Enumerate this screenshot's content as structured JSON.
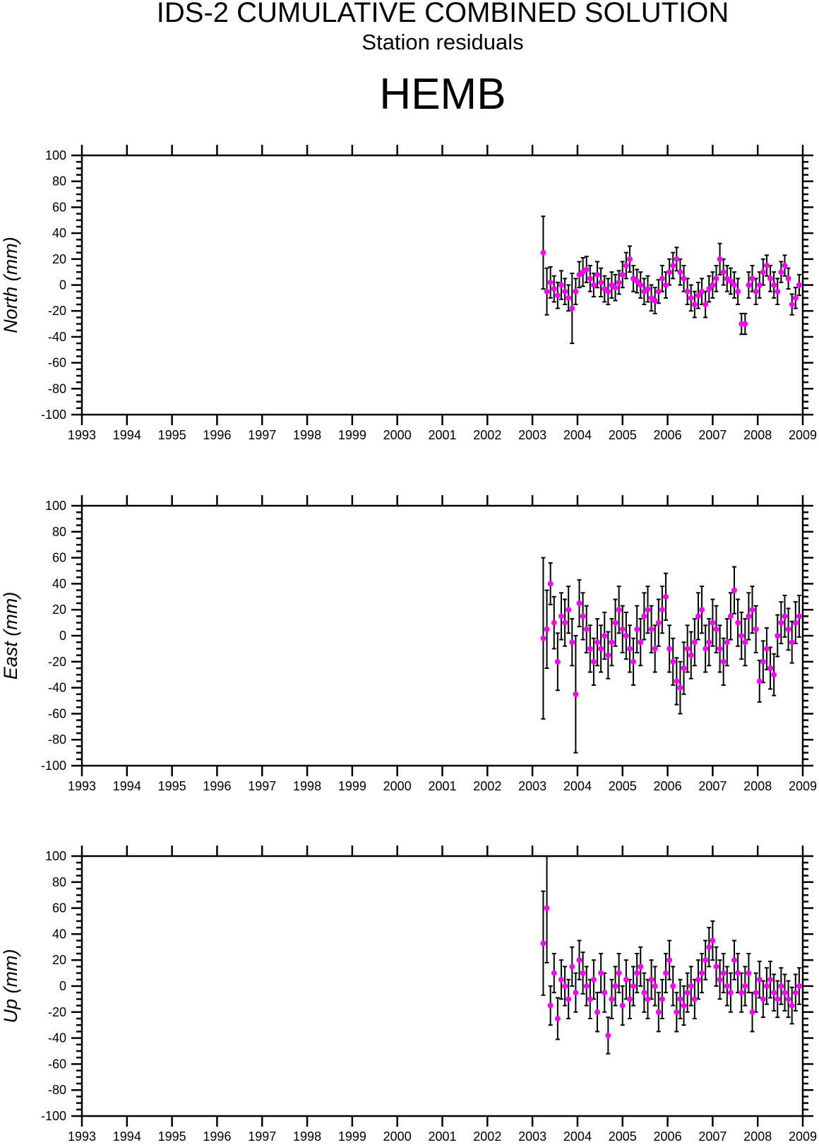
{
  "header": {
    "title": "IDS-2 CUMULATIVE COMBINED SOLUTION",
    "subtitle": "Station residuals",
    "station": "HEMB"
  },
  "colors": {
    "point": "#ff00ff",
    "errorbar": "#000000",
    "axis": "#000000"
  },
  "chart_data": [
    {
      "type": "scatter",
      "title": "North",
      "ylabel": "North (mm)",
      "xlim": [
        1993,
        2009
      ],
      "ylim": [
        -100,
        100
      ],
      "xticks": [
        "1993",
        "1994",
        "1995",
        "1996",
        "1997",
        "1998",
        "1999",
        "2000",
        "2001",
        "2002",
        "2003",
        "2004",
        "2005",
        "2006",
        "2007",
        "2008",
        "2009"
      ],
      "yticks": [
        "100",
        "80",
        "60",
        "40",
        "20",
        "0",
        "-20",
        "-40",
        "-60",
        "-80",
        "-100"
      ],
      "y": [
        25,
        -5,
        2,
        -3,
        -8,
        0,
        -5,
        -10,
        -18,
        -5,
        8,
        10,
        12,
        5,
        0,
        8,
        2,
        -3,
        -5,
        0,
        -2,
        2,
        8,
        15,
        20,
        5,
        3,
        0,
        -5,
        -3,
        -10,
        -12,
        -5,
        5,
        0,
        10,
        15,
        20,
        10,
        5,
        -5,
        -10,
        -15,
        -8,
        -5,
        -15,
        -3,
        0,
        5,
        20,
        10,
        5,
        3,
        0,
        -5,
        -30,
        -30,
        0,
        5,
        -5,
        0,
        10,
        15,
        5,
        0,
        -5,
        10,
        15,
        5,
        -15,
        -10,
        0
      ],
      "err": [
        28,
        18,
        12,
        10,
        10,
        11,
        10,
        10,
        27,
        10,
        10,
        11,
        10,
        10,
        9,
        10,
        11,
        10,
        10,
        10,
        10,
        9,
        10,
        10,
        10,
        10,
        9,
        10,
        10,
        10,
        10,
        10,
        9,
        10,
        10,
        10,
        10,
        9,
        10,
        10,
        10,
        10,
        10,
        10,
        10,
        10,
        10,
        10,
        10,
        12,
        10,
        10,
        10,
        10,
        10,
        8,
        8,
        10,
        10,
        10,
        10,
        10,
        8,
        10,
        10,
        10,
        8,
        8,
        8,
        8,
        8,
        8
      ]
    },
    {
      "type": "scatter",
      "title": "East",
      "ylabel": "East (mm)",
      "xlim": [
        1993,
        2009
      ],
      "ylim": [
        -100,
        100
      ],
      "xticks": [
        "1993",
        "1994",
        "1995",
        "1996",
        "1997",
        "1998",
        "1999",
        "2000",
        "2001",
        "2002",
        "2003",
        "2004",
        "2005",
        "2006",
        "2007",
        "2008",
        "2009"
      ],
      "yticks": [
        "100",
        "80",
        "60",
        "40",
        "20",
        "0",
        "-20",
        "-40",
        "-60",
        "-80",
        "-100"
      ],
      "y": [
        -2,
        5,
        40,
        10,
        -20,
        15,
        10,
        20,
        -5,
        -45,
        25,
        15,
        5,
        -10,
        -20,
        -5,
        -10,
        0,
        -15,
        -5,
        10,
        20,
        5,
        0,
        -10,
        -20,
        5,
        -5,
        15,
        20,
        5,
        -10,
        10,
        20,
        30,
        -10,
        -20,
        -35,
        -40,
        -25,
        -10,
        -15,
        -5,
        15,
        20,
        -10,
        -5,
        10,
        5,
        -10,
        -20,
        -5,
        15,
        35,
        10,
        0,
        -5,
        15,
        20,
        5,
        -35,
        -20,
        -10,
        -25,
        -30,
        0,
        10,
        15,
        5,
        -5,
        10,
        15
      ],
      "err": [
        62,
        30,
        16,
        20,
        22,
        18,
        18,
        18,
        18,
        45,
        18,
        18,
        18,
        18,
        18,
        18,
        18,
        18,
        18,
        18,
        18,
        18,
        18,
        18,
        18,
        18,
        18,
        18,
        18,
        18,
        18,
        18,
        18,
        18,
        18,
        18,
        18,
        18,
        20,
        20,
        18,
        18,
        18,
        18,
        18,
        18,
        18,
        18,
        18,
        18,
        18,
        18,
        18,
        18,
        18,
        18,
        18,
        18,
        18,
        18,
        16,
        16,
        16,
        16,
        16,
        16,
        16,
        16,
        16,
        16,
        16,
        16
      ]
    },
    {
      "type": "scatter",
      "title": "Up",
      "ylabel": "Up (mm)",
      "xlim": [
        1993,
        2009
      ],
      "ylim": [
        -100,
        100
      ],
      "xticks": [
        "1993",
        "1994",
        "1995",
        "1996",
        "1997",
        "1998",
        "1999",
        "2000",
        "2001",
        "2002",
        "2003",
        "2004",
        "2005",
        "2006",
        "2007",
        "2008",
        "2009"
      ],
      "yticks": [
        "100",
        "80",
        "60",
        "40",
        "20",
        "0",
        "-20",
        "-40",
        "-60",
        "-80",
        "-100"
      ],
      "y": [
        33,
        60,
        -15,
        10,
        -25,
        5,
        0,
        -10,
        15,
        -5,
        20,
        10,
        0,
        -10,
        5,
        -20,
        10,
        -5,
        -38,
        -10,
        0,
        10,
        -15,
        5,
        -10,
        0,
        10,
        15,
        -5,
        -10,
        5,
        0,
        -20,
        -10,
        10,
        20,
        0,
        -20,
        -10,
        -15,
        -5,
        0,
        -10,
        5,
        10,
        20,
        30,
        35,
        15,
        5,
        10,
        0,
        -5,
        20,
        10,
        -5,
        0,
        10,
        -20,
        -5,
        5,
        -10,
        0,
        5,
        -5,
        -10,
        0,
        -5,
        -10,
        -15,
        -5,
        0
      ],
      "err": [
        40,
        42,
        15,
        15,
        16,
        15,
        15,
        15,
        15,
        15,
        15,
        16,
        15,
        15,
        15,
        15,
        15,
        15,
        14,
        15,
        15,
        15,
        15,
        15,
        15,
        15,
        15,
        15,
        15,
        15,
        15,
        15,
        15,
        15,
        15,
        15,
        15,
        15,
        15,
        15,
        15,
        15,
        15,
        15,
        15,
        15,
        15,
        15,
        15,
        15,
        15,
        15,
        15,
        15,
        15,
        15,
        15,
        15,
        15,
        15,
        14,
        14,
        14,
        14,
        14,
        14,
        14,
        14,
        14,
        14,
        14,
        14
      ]
    }
  ],
  "x": [
    2003.24,
    2003.32,
    2003.4,
    2003.48,
    2003.56,
    2003.64,
    2003.72,
    2003.8,
    2003.88,
    2003.96,
    2004.04,
    2004.12,
    2004.2,
    2004.28,
    2004.36,
    2004.44,
    2004.52,
    2004.6,
    2004.68,
    2004.76,
    2004.84,
    2004.92,
    2005.0,
    2005.08,
    2005.16,
    2005.24,
    2005.32,
    2005.4,
    2005.48,
    2005.56,
    2005.64,
    2005.72,
    2005.8,
    2005.88,
    2005.96,
    2006.04,
    2006.12,
    2006.2,
    2006.28,
    2006.36,
    2006.44,
    2006.52,
    2006.6,
    2006.68,
    2006.76,
    2006.84,
    2006.92,
    2007.0,
    2007.08,
    2007.16,
    2007.24,
    2007.32,
    2007.4,
    2007.48,
    2007.56,
    2007.64,
    2007.72,
    2007.8,
    2007.88,
    2007.96,
    2008.04,
    2008.12,
    2008.2,
    2008.28,
    2008.36,
    2008.44,
    2008.52,
    2008.6,
    2008.68,
    2008.76,
    2008.84,
    2008.92
  ]
}
